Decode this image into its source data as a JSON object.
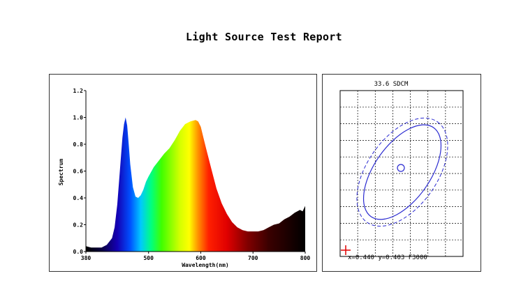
{
  "report": {
    "title": "Light Source Test Report"
  },
  "chart_data": [
    {
      "type": "area",
      "title": "",
      "xlabel": "Wavelength(nm)",
      "ylabel": "Spectrum",
      "xlim": [
        380,
        800
      ],
      "ylim": [
        0,
        1.2
      ],
      "xticks": [
        380,
        500,
        600,
        700,
        800
      ],
      "yticks": [
        "0.0",
        "0.2",
        "0.4",
        "0.6",
        "0.8",
        "1.0",
        "1.2"
      ],
      "grid": false,
      "fill": "visible-spectrum rainbow gradient",
      "series": [
        {
          "x": [
            380,
            390,
            400,
            410,
            420,
            430,
            435,
            440,
            445,
            450,
            453,
            456,
            459,
            462,
            465,
            470,
            475,
            480,
            485,
            490,
            495,
            500,
            510,
            520,
            530,
            540,
            550,
            560,
            570,
            580,
            590,
            595,
            600,
            605,
            610,
            620,
            630,
            640,
            650,
            660,
            670,
            680,
            690,
            700,
            710,
            720,
            730,
            740,
            750,
            760,
            770,
            780,
            790,
            795,
            800
          ],
          "y": [
            0.04,
            0.03,
            0.03,
            0.03,
            0.05,
            0.1,
            0.18,
            0.35,
            0.6,
            0.85,
            0.95,
            1.0,
            0.94,
            0.8,
            0.65,
            0.48,
            0.41,
            0.4,
            0.42,
            0.46,
            0.52,
            0.56,
            0.63,
            0.68,
            0.73,
            0.77,
            0.83,
            0.9,
            0.95,
            0.97,
            0.98,
            0.97,
            0.93,
            0.85,
            0.77,
            0.62,
            0.47,
            0.36,
            0.28,
            0.22,
            0.18,
            0.16,
            0.15,
            0.15,
            0.15,
            0.16,
            0.18,
            0.2,
            0.21,
            0.24,
            0.26,
            0.29,
            0.31,
            0.3,
            0.34
          ]
        }
      ]
    },
    {
      "type": "scatter",
      "title": "33.6 SDCM",
      "grid": true,
      "readout": "x=0.440 y=0.403 F3000",
      "ellipses": [
        "solid",
        "dashed"
      ],
      "measured_point": {
        "x": 0.44,
        "y": 0.403
      }
    }
  ]
}
